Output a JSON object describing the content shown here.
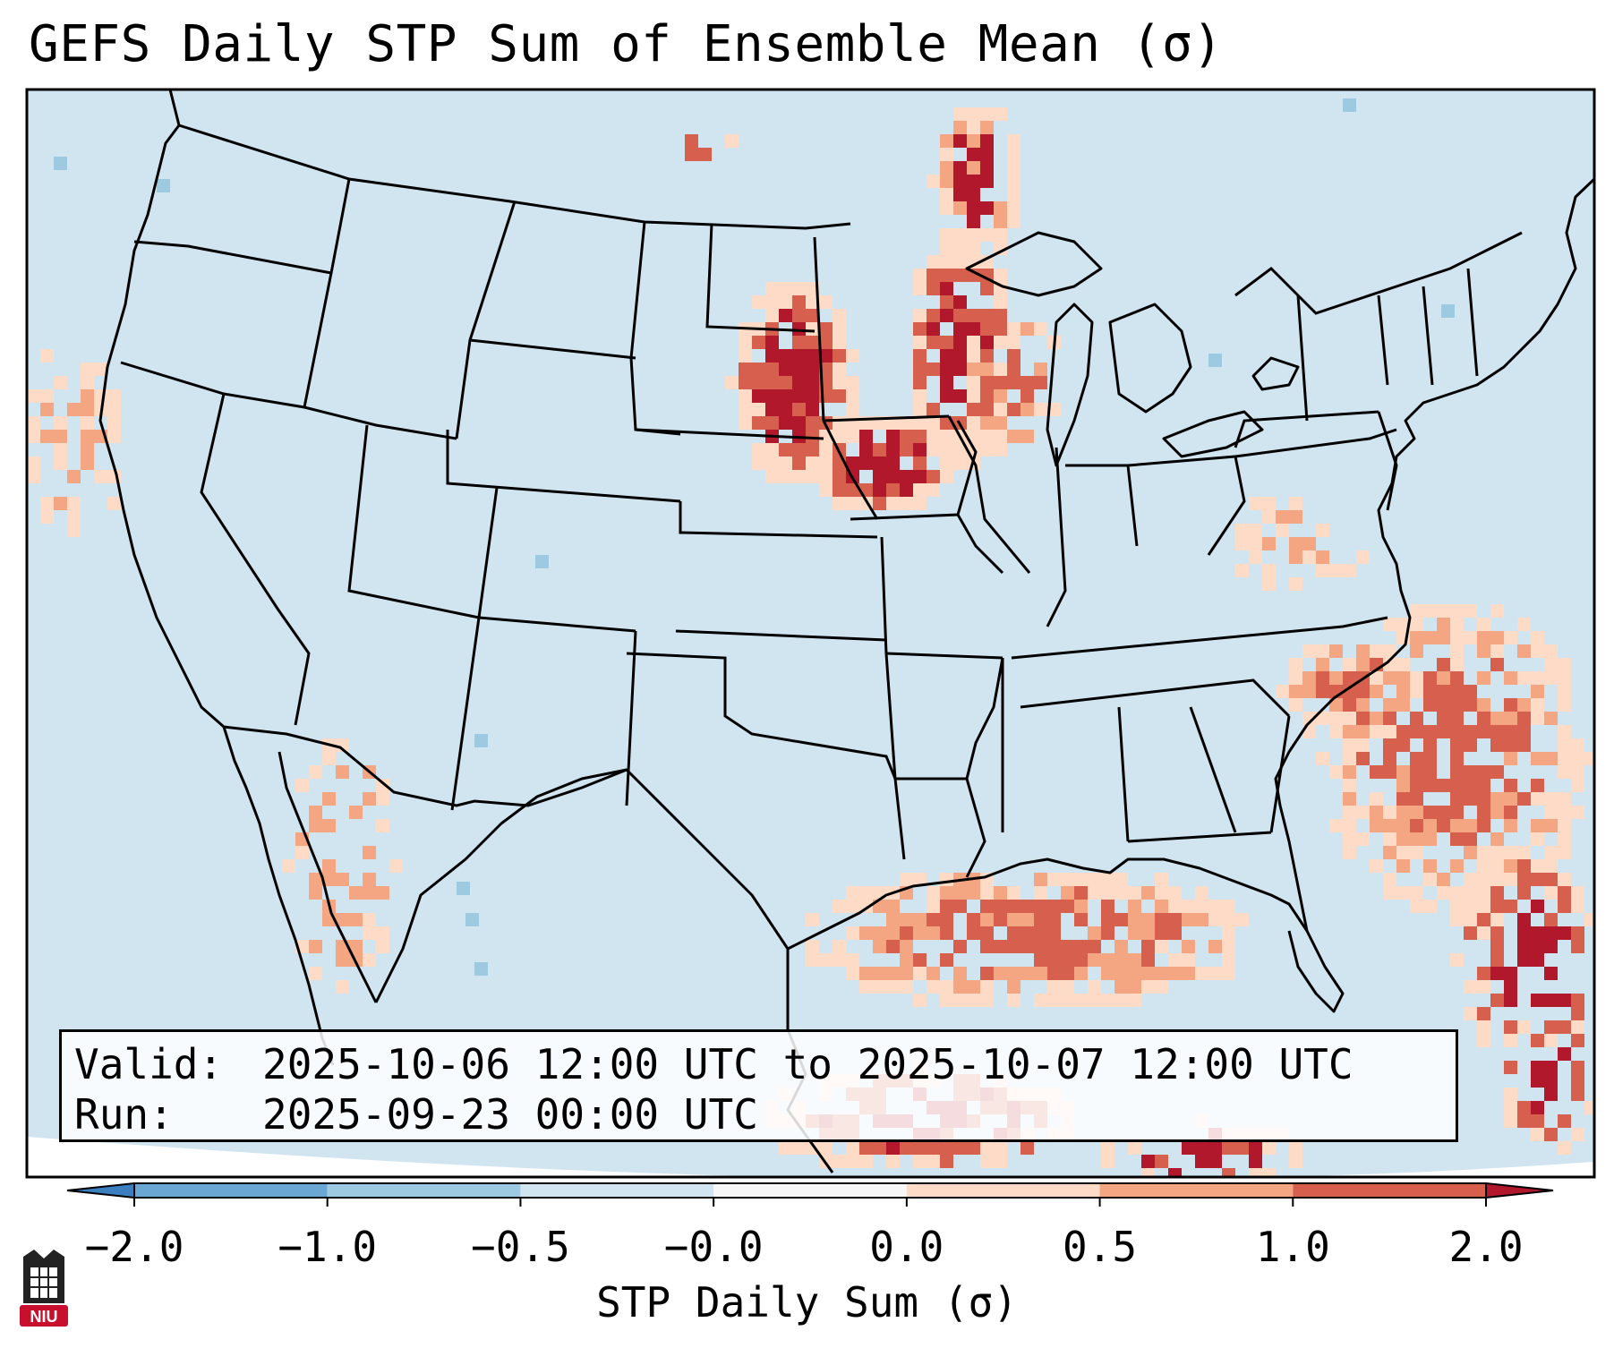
{
  "title": "GEFS Daily STP Sum of Ensemble Mean (σ)",
  "info": {
    "valid_key": "Valid:",
    "valid_value": "2025-10-06 12:00 UTC to 2025-10-07 12:00 UTC",
    "run_key": "Run:",
    "run_value": "2025-09-23 00:00 UTC"
  },
  "colorbar": {
    "label": "STP Daily Sum (σ)",
    "ticks": [
      "−2.0",
      "−1.0",
      "−0.5",
      "−0.0",
      "0.0",
      "0.5",
      "1.0",
      "2.0"
    ],
    "colors": [
      "#3b7fbf",
      "#6aa8d3",
      "#9ecae1",
      "#d1e5f0",
      "#f7f7f7",
      "#fddbc7",
      "#f4a582",
      "#d6604d",
      "#b2182b"
    ],
    "extend": "both"
  },
  "map": {
    "background_color": "#d1e5f0",
    "land_outline_color": "#000000",
    "high_value_regions": [
      "Iowa",
      "Nebraska",
      "Minnesota",
      "Wisconsin",
      "Gulf of Mexico",
      "Western Atlantic",
      "Caribbean"
    ]
  },
  "logo": {
    "text": "NIU",
    "color": "#c8102e"
  }
}
